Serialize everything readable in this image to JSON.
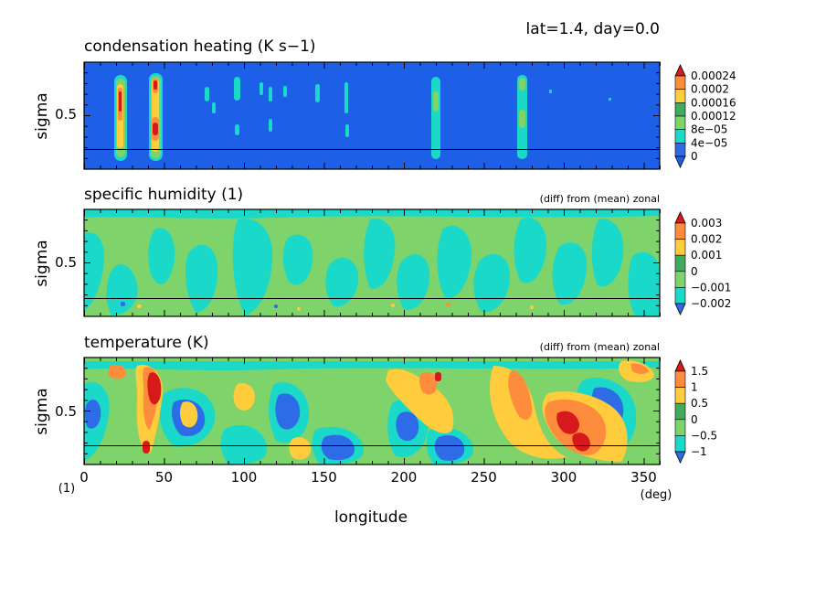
{
  "header": {
    "text": "lat=1.4, day=0.0"
  },
  "x_axis": {
    "label": "longitude",
    "unit": "(deg)",
    "ticks": [
      "0",
      "50",
      "100",
      "150",
      "200",
      "250",
      "300",
      "350"
    ],
    "tick_values": [
      0,
      50,
      100,
      150,
      200,
      250,
      300,
      350
    ],
    "range": [
      0,
      360
    ]
  },
  "y_axis": {
    "label": "sigma",
    "tick": "0.5",
    "corner_unit": "(1)"
  },
  "chart_data": [
    {
      "type": "heatmap",
      "title": "condensation heating (K s−1)",
      "subtitle": "",
      "xlabel": "longitude",
      "ylabel": "sigma",
      "x_range": [
        0,
        360
      ],
      "y_range": [
        1.0,
        0.0
      ],
      "background_level": "0",
      "colorbar": {
        "labels": [
          "0.00024",
          "0.0002",
          "0.00016",
          "0.00012",
          "8e−05",
          "4e−05",
          "0"
        ],
        "colors": [
          "#d7191c",
          "#fd8d3c",
          "#fecc3c",
          "#41ab5d",
          "#7fd36b",
          "#1ad9c8",
          "#2e6be6",
          "#1e5fe8"
        ]
      },
      "features": [
        {
          "lon": 22,
          "sigma_top": 0.12,
          "sigma_bottom": 0.8,
          "peak": "0.00024"
        },
        {
          "lon": 45,
          "sigma_top": 0.1,
          "sigma_bottom": 0.8,
          "peak": "0.00024"
        },
        {
          "lon": 218,
          "sigma_top": 0.15,
          "sigma_bottom": 0.8,
          "peak": "0.00012"
        },
        {
          "lon": 272,
          "sigma_top": 0.12,
          "sigma_bottom": 0.8,
          "peak": "0.00016"
        }
      ]
    },
    {
      "type": "heatmap",
      "title": "specific humidity (1)",
      "subtitle": "(diff) from (mean) zonal",
      "xlabel": "longitude",
      "ylabel": "sigma",
      "x_range": [
        0,
        360
      ],
      "y_range": [
        1.0,
        0.0
      ],
      "background_level": "0",
      "colorbar": {
        "labels": [
          "0.003",
          "0.002",
          "0.001",
          "0",
          "−0.001",
          "−0.002"
        ],
        "colors": [
          "#d7191c",
          "#fd8d3c",
          "#fecc3c",
          "#41ab5d",
          "#7fd36b",
          "#1ad9c8",
          "#2e6be6"
        ]
      }
    },
    {
      "type": "heatmap",
      "title": "temperature (K)",
      "subtitle": "(diff) from (mean) zonal",
      "xlabel": "longitude",
      "ylabel": "sigma",
      "x_range": [
        0,
        360
      ],
      "y_range": [
        1.0,
        0.0
      ],
      "background_level": "0",
      "colorbar": {
        "labels": [
          "1.5",
          "1",
          "0.5",
          "0",
          "−0.5",
          "−1"
        ],
        "colors": [
          "#d7191c",
          "#fd8d3c",
          "#fecc3c",
          "#41ab5d",
          "#7fd36b",
          "#1ad9c8",
          "#2e6be6"
        ]
      }
    }
  ]
}
